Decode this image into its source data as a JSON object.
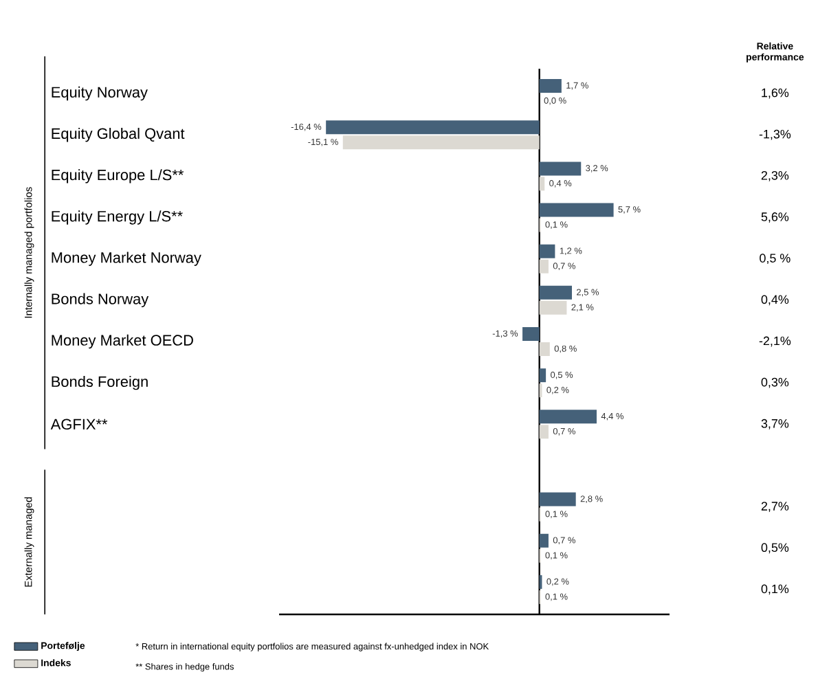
{
  "chart_data": {
    "type": "bar",
    "orientation": "horizontal",
    "categories": [
      "Equity Norway",
      "Equity Global Qvant",
      "Equity Europe L/S**",
      "Equity Energy L/S**",
      "Money Market Norway",
      "Bonds Norway",
      "Money Market OECD",
      "Bonds Foreign",
      "AGFIX**",
      null,
      null,
      null,
      null
    ],
    "series": [
      {
        "name": "Portefølje",
        "color": "#456179",
        "values": [
          1.7,
          -16.4,
          3.2,
          5.7,
          1.2,
          2.5,
          -1.3,
          0.5,
          4.4,
          null,
          2.8,
          0.7,
          0.2
        ],
        "value_labels": [
          "1,7 %",
          "-16,4 %",
          "3,2 %",
          "5,7 %",
          "1,2 %",
          "2,5 %",
          "-1,3 %",
          "0,5 %",
          "4,4 %",
          null,
          "2,8 %",
          "0,7 %",
          "0,2 %"
        ]
      },
      {
        "name": "Indeks",
        "color": "#dcd9d2",
        "values": [
          0.0,
          -15.1,
          0.4,
          0.1,
          0.7,
          2.1,
          0.8,
          0.2,
          0.7,
          null,
          0.1,
          0.1,
          0.1
        ],
        "value_labels": [
          "0,0 %",
          "-15,1 %",
          "0,4 %",
          "0,1 %",
          "0,7 %",
          "2,1 %",
          "0,8 %",
          "0,2 %",
          "0,7 %",
          null,
          "0,1 %",
          "0,1 %",
          "0,1 %"
        ]
      }
    ],
    "xlim": [
      -20,
      10
    ],
    "tick_labels": "y",
    "legend": "bottom left",
    "annotations": [
      "Relative performance",
      "1,6%",
      "-1,3%",
      "2,3%",
      "5,6%",
      "0,5 %",
      "0,4%",
      "-2,1%",
      "0,3%",
      "3,7%",
      "2,7%",
      "0,5%",
      "0,1%",
      "Internally managed portfolios",
      "Externally managed",
      "* Return in international equity portfolios are measured against fx-unhedged index in NOK",
      "** Shares in hedge funds"
    ]
  }
}
